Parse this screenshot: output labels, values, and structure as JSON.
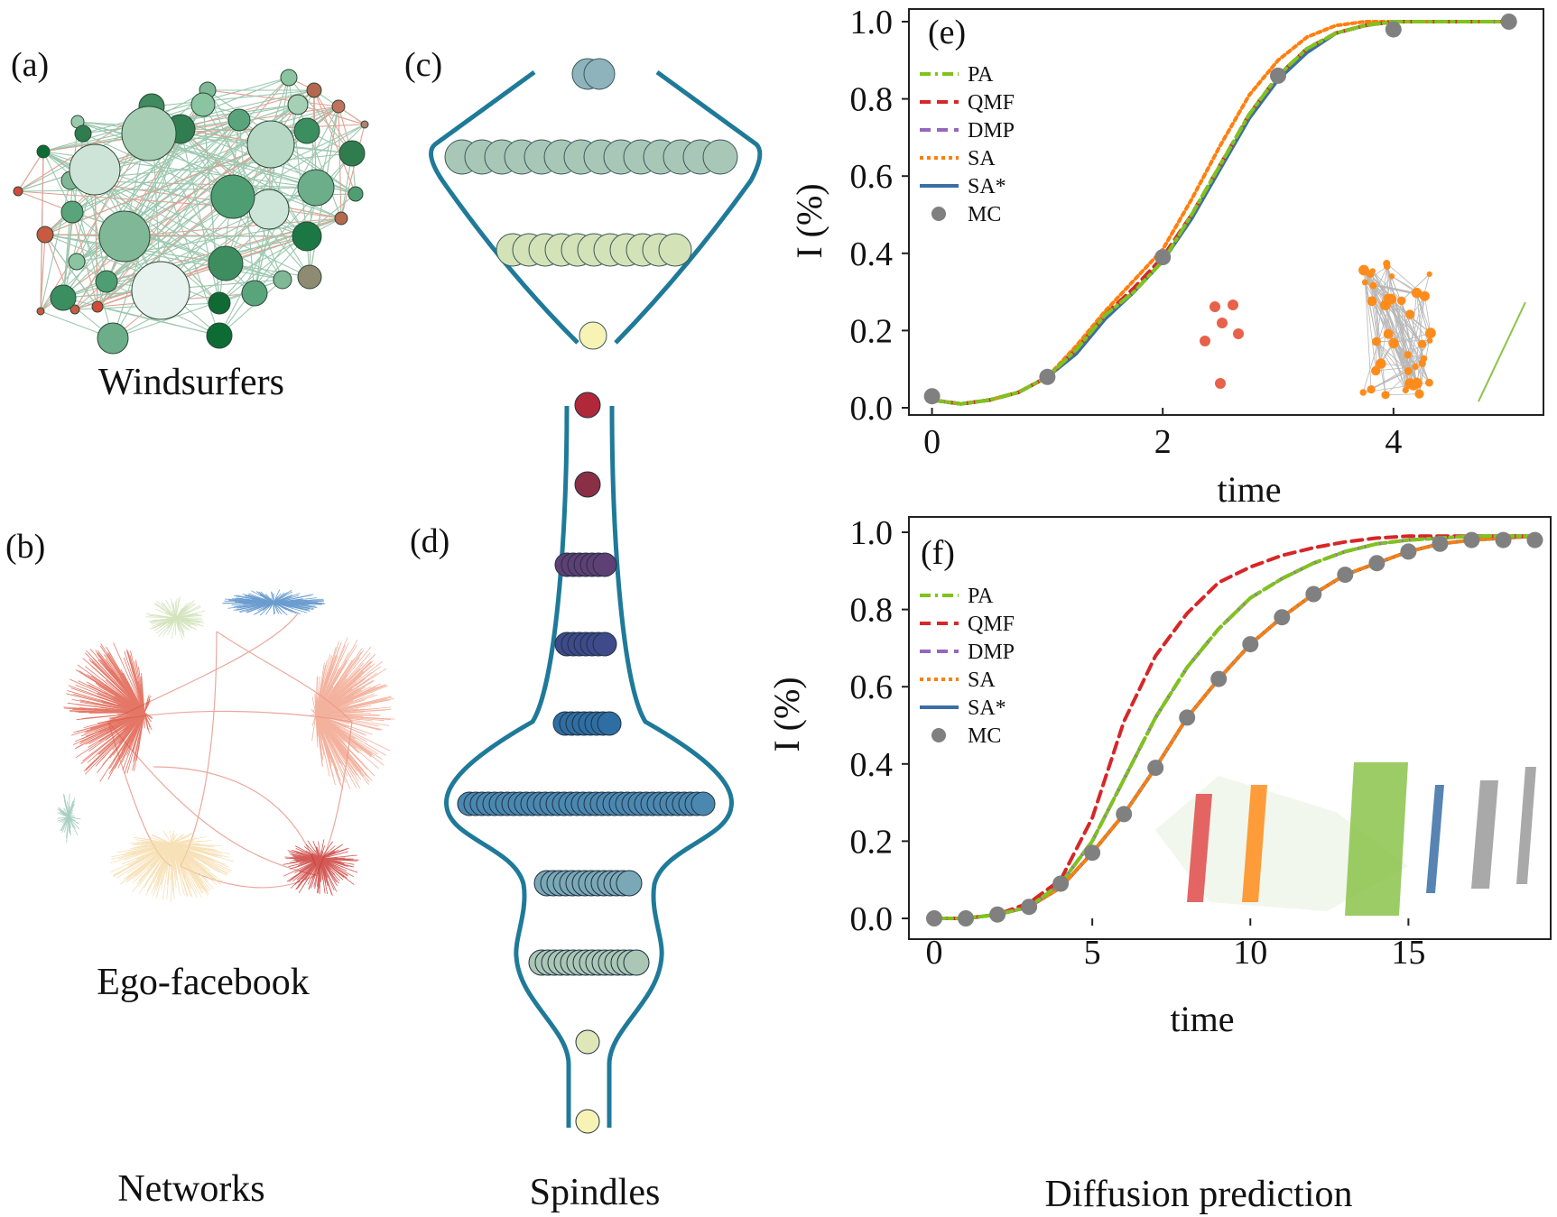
{
  "labels": {
    "a": "(a)",
    "b": "(b)",
    "c": "(c)",
    "d": "(d)",
    "e": "(e)",
    "f": "(f)"
  },
  "captions": {
    "windsurfers": "Windsurfers",
    "ego_facebook": "Ego-facebook",
    "networks": "Networks",
    "spindles": "Spindles",
    "diffusion": "Diffusion prediction"
  },
  "colors": {
    "PA": "#7fc31c",
    "QMF": "#d62728",
    "DMP": "#9467bd",
    "SA": "#ff7f0e",
    "SA*": "#3a6ea5",
    "MC": "#808080",
    "spindle_outline": "#1f7a99"
  },
  "chart_data": [
    {
      "panel": "(e)",
      "type": "line",
      "xlabel": "time",
      "ylabel": "I (%)",
      "xlim": [
        -0.2,
        5.3
      ],
      "ylim": [
        0.0,
        1.0
      ],
      "xticks": [
        0,
        2,
        4
      ],
      "yticks": [
        "0.0",
        "0.2",
        "0.4",
        "0.6",
        "0.8",
        "1.0"
      ],
      "legend_position": "top-left",
      "series": [
        {
          "name": "PA",
          "style": "dashdot",
          "x": [
            0,
            0.25,
            0.5,
            0.75,
            1,
            1.25,
            1.5,
            1.75,
            2,
            2.25,
            2.5,
            2.75,
            3,
            3.25,
            3.5,
            3.75,
            4,
            4.25,
            4.5,
            4.75,
            5
          ],
          "y": [
            0.02,
            0.01,
            0.02,
            0.04,
            0.08,
            0.15,
            0.24,
            0.3,
            0.38,
            0.5,
            0.63,
            0.76,
            0.86,
            0.93,
            0.97,
            0.99,
            1.0,
            1.0,
            1.0,
            1.0,
            1.0
          ]
        },
        {
          "name": "QMF",
          "style": "dashed",
          "x": [
            0,
            0.25,
            0.5,
            0.75,
            1,
            1.25,
            1.5,
            1.75,
            2,
            2.25,
            2.5,
            2.75,
            3,
            3.25,
            3.5,
            3.75,
            4,
            4.25,
            4.5,
            4.75,
            5
          ],
          "y": [
            0.02,
            0.01,
            0.02,
            0.04,
            0.08,
            0.15,
            0.24,
            0.31,
            0.39,
            0.5,
            0.63,
            0.76,
            0.86,
            0.93,
            0.97,
            0.99,
            1.0,
            1.0,
            1.0,
            1.0,
            1.0
          ]
        },
        {
          "name": "DMP",
          "style": "dashed",
          "x": [
            0,
            0.25,
            0.5,
            0.75,
            1,
            1.25,
            1.5,
            1.75,
            2,
            2.25,
            2.5,
            2.75,
            3,
            3.25,
            3.5,
            3.75,
            4,
            4.25,
            4.5,
            4.75,
            5
          ],
          "y": [
            0.02,
            0.01,
            0.02,
            0.04,
            0.08,
            0.15,
            0.24,
            0.31,
            0.39,
            0.5,
            0.63,
            0.76,
            0.86,
            0.93,
            0.97,
            0.99,
            1.0,
            1.0,
            1.0,
            1.0,
            1.0
          ]
        },
        {
          "name": "SA",
          "style": "dotted",
          "x": [
            0,
            0.25,
            0.5,
            0.75,
            1,
            1.25,
            1.5,
            1.75,
            2,
            2.25,
            2.5,
            2.75,
            3,
            3.25,
            3.5,
            3.75,
            4,
            4.25,
            4.5,
            4.75,
            5
          ],
          "y": [
            0.02,
            0.01,
            0.02,
            0.04,
            0.08,
            0.16,
            0.25,
            0.33,
            0.41,
            0.54,
            0.68,
            0.81,
            0.9,
            0.96,
            0.99,
            1.0,
            1.0,
            1.0,
            1.0,
            1.0,
            1.0
          ]
        },
        {
          "name": "SA*",
          "style": "solid",
          "x": [
            0,
            0.25,
            0.5,
            0.75,
            1,
            1.25,
            1.5,
            1.75,
            2,
            2.25,
            2.5,
            2.75,
            3,
            3.25,
            3.5,
            3.75,
            4,
            4.25,
            4.5,
            4.75,
            5
          ],
          "y": [
            0.02,
            0.01,
            0.02,
            0.04,
            0.08,
            0.14,
            0.23,
            0.3,
            0.38,
            0.49,
            0.62,
            0.75,
            0.85,
            0.92,
            0.97,
            0.99,
            1.0,
            1.0,
            1.0,
            1.0,
            1.0
          ]
        },
        {
          "name": "MC",
          "style": "markers",
          "x": [
            0,
            1,
            2,
            3,
            4,
            5
          ],
          "y": [
            0.03,
            0.08,
            0.39,
            0.86,
            0.98,
            1.0
          ]
        }
      ]
    },
    {
      "panel": "(f)",
      "type": "line",
      "xlabel": "time",
      "ylabel": "I (%)",
      "xlim": [
        -0.8,
        19.5
      ],
      "ylim": [
        0.0,
        1.0
      ],
      "xticks": [
        0,
        5,
        10,
        15
      ],
      "yticks": [
        "0.0",
        "0.2",
        "0.4",
        "0.6",
        "0.8",
        "1.0"
      ],
      "legend_position": "top-left",
      "series": [
        {
          "name": "PA",
          "style": "dashdot",
          "x": [
            0,
            1,
            2,
            3,
            4,
            5,
            6,
            7,
            8,
            9,
            10,
            11,
            12,
            13,
            14,
            15,
            16,
            17,
            18,
            19
          ],
          "y": [
            0.0,
            0.0,
            0.01,
            0.03,
            0.09,
            0.2,
            0.36,
            0.52,
            0.65,
            0.75,
            0.83,
            0.88,
            0.92,
            0.95,
            0.97,
            0.98,
            0.985,
            0.99,
            0.99,
            0.99
          ]
        },
        {
          "name": "QMF",
          "style": "dashed",
          "x": [
            0,
            1,
            2,
            3,
            4,
            5,
            6,
            7,
            8,
            9,
            10,
            11,
            12,
            13,
            14,
            15,
            16,
            17,
            18,
            19
          ],
          "y": [
            0.0,
            0.0,
            0.01,
            0.04,
            0.1,
            0.26,
            0.51,
            0.68,
            0.79,
            0.87,
            0.91,
            0.94,
            0.96,
            0.975,
            0.985,
            0.99,
            0.99,
            0.99,
            0.99,
            0.99
          ]
        },
        {
          "name": "DMP",
          "style": "dashed",
          "x": [
            0,
            1,
            2,
            3,
            4,
            5,
            6,
            7,
            8,
            9,
            10,
            11,
            12,
            13,
            14,
            15,
            16,
            17,
            18,
            19
          ],
          "y": [
            0.0,
            0.0,
            0.01,
            0.03,
            0.09,
            0.2,
            0.36,
            0.52,
            0.65,
            0.75,
            0.83,
            0.88,
            0.92,
            0.95,
            0.97,
            0.98,
            0.985,
            0.99,
            0.99,
            0.99
          ]
        },
        {
          "name": "SA",
          "style": "dotted",
          "x": [
            0,
            1,
            2,
            3,
            4,
            5,
            6,
            7,
            8,
            9,
            10,
            11,
            12,
            13,
            14,
            15,
            16,
            17,
            18,
            19
          ],
          "y": [
            0.0,
            0.0,
            0.01,
            0.03,
            0.08,
            0.17,
            0.27,
            0.39,
            0.52,
            0.62,
            0.71,
            0.78,
            0.84,
            0.89,
            0.92,
            0.95,
            0.97,
            0.98,
            0.985,
            0.99
          ]
        },
        {
          "name": "SA*",
          "style": "solid",
          "x": [
            0,
            1,
            2,
            3,
            4,
            5,
            6,
            7,
            8,
            9,
            10,
            11,
            12,
            13,
            14,
            15,
            16,
            17,
            18,
            19
          ],
          "y": [
            0.0,
            0.0,
            0.01,
            0.03,
            0.08,
            0.17,
            0.27,
            0.39,
            0.52,
            0.62,
            0.71,
            0.78,
            0.84,
            0.89,
            0.92,
            0.95,
            0.97,
            0.98,
            0.985,
            0.99
          ]
        },
        {
          "name": "MC",
          "style": "markers",
          "x": [
            0,
            1,
            2,
            3,
            4,
            5,
            6,
            7,
            8,
            9,
            10,
            11,
            12,
            13,
            14,
            15,
            16,
            17,
            18,
            19
          ],
          "y": [
            0.0,
            0.0,
            0.01,
            0.03,
            0.09,
            0.17,
            0.27,
            0.39,
            0.52,
            0.62,
            0.71,
            0.78,
            0.84,
            0.89,
            0.92,
            0.95,
            0.97,
            0.98,
            0.98,
            0.98
          ]
        }
      ]
    }
  ]
}
